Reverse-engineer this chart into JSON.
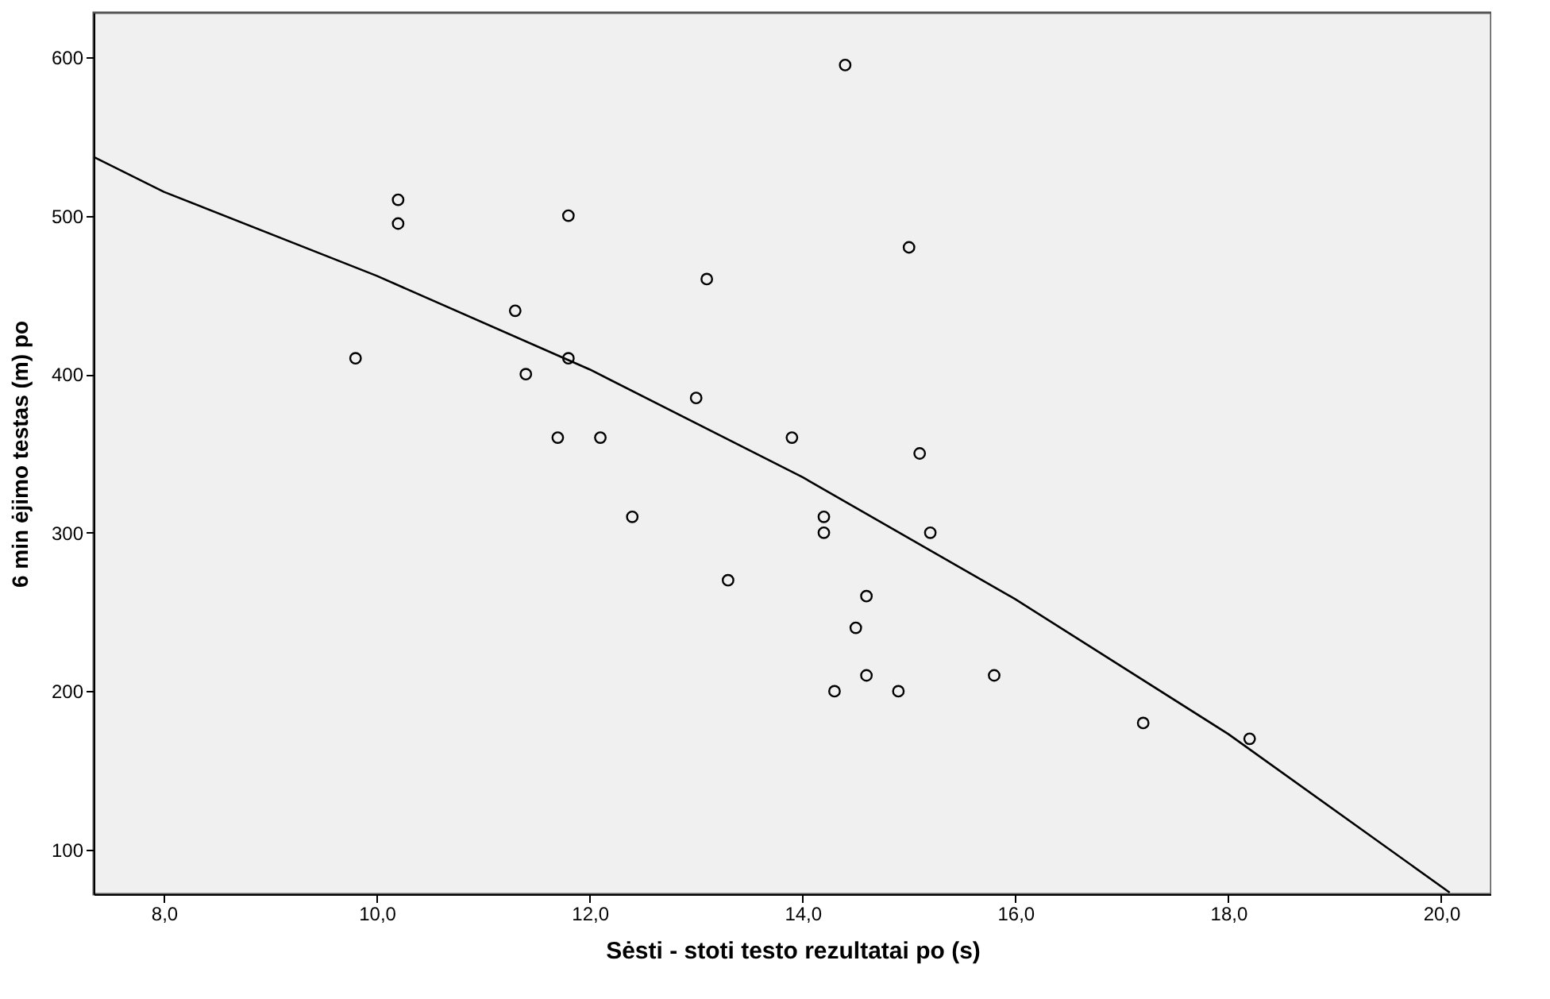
{
  "chart_data": {
    "type": "scatter",
    "xlabel": "Sėsti - stoti testo rezultatai po (s)",
    "ylabel": "6 min ėjimo testas (m) po",
    "xlim": [
      7.34,
      20.47
    ],
    "ylim": [
      72,
      628
    ],
    "xticks": [
      {
        "value": 8,
        "label": "8,0"
      },
      {
        "value": 10,
        "label": "10,0"
      },
      {
        "value": 12,
        "label": "12,0"
      },
      {
        "value": 14,
        "label": "14,0"
      },
      {
        "value": 16,
        "label": "16,0"
      },
      {
        "value": 18,
        "label": "18,0"
      },
      {
        "value": 20,
        "label": "20,0"
      }
    ],
    "yticks": [
      100,
      200,
      300,
      400,
      500,
      600
    ],
    "grid": false,
    "series": [
      {
        "marker": "circle",
        "color": "#000000",
        "x": [
          9.8,
          10.2,
          10.2,
          11.3,
          11.4,
          11.7,
          11.8,
          11.8,
          12.1,
          12.4,
          13.0,
          13.1,
          13.3,
          13.9,
          14.2,
          14.2,
          14.3,
          14.4,
          14.5,
          14.6,
          14.6,
          14.9,
          15.0,
          15.1,
          15.2,
          15.8,
          17.2,
          18.2
        ],
        "values": [
          410,
          510,
          495,
          440,
          400,
          360,
          500,
          410,
          360,
          310,
          385,
          460,
          270,
          360,
          310,
          300,
          200,
          595,
          240,
          260,
          210,
          200,
          480,
          350,
          300,
          210,
          180,
          170
        ]
      },
      {
        "type": "line",
        "marker": "none",
        "color": "#000000",
        "x": [
          7.34,
          8,
          10,
          12,
          14,
          16,
          18,
          20.08
        ],
        "values": [
          537,
          515,
          462,
          403,
          335,
          258,
          173,
          73
        ]
      }
    ]
  }
}
